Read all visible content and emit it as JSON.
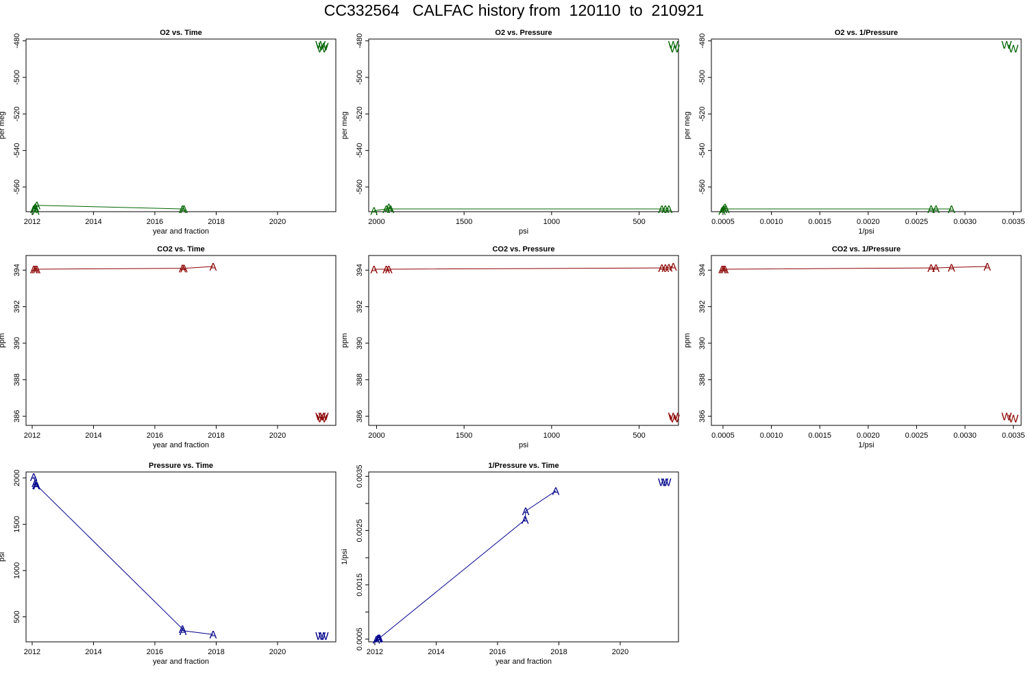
{
  "title": "CC332564   CALFAC history from  120110  to  210921",
  "colors": {
    "o2": "#006400",
    "co2": "#8B0000",
    "pressure": "#00008B"
  },
  "chart_data": [
    {
      "id": "o2-time",
      "type": "scatter",
      "title": "O2 vs. Time",
      "xlabel": "year and fraction",
      "ylabel": "per meg",
      "xlim": [
        2011.8,
        2021.9
      ],
      "ylim": [
        -573.5,
        -479
      ],
      "y_reversed": false,
      "x_reversed": false,
      "xticks": [
        2012,
        2014,
        2016,
        2018,
        2020
      ],
      "yticks": [
        -480,
        -500,
        -520,
        -540,
        -560
      ],
      "color_key": "o2",
      "series": [
        {
          "marker": "A",
          "line": true,
          "points": [
            [
              2012.05,
              -572
            ],
            [
              2012.1,
              -571
            ],
            [
              2012.12,
              -573
            ],
            [
              2012.15,
              -570
            ],
            [
              2016.9,
              -572
            ],
            [
              2016.95,
              -572
            ]
          ]
        },
        {
          "marker": "W",
          "line": false,
          "points": [
            [
              2021.4,
              -482
            ],
            [
              2021.45,
              -484
            ],
            [
              2021.5,
              -483
            ]
          ]
        }
      ]
    },
    {
      "id": "o2-pressure",
      "type": "scatter",
      "title": "O2 vs. Pressure",
      "xlabel": "psi",
      "ylabel": "per meg",
      "xlim": [
        2045,
        275
      ],
      "ylim": [
        -573.5,
        -479
      ],
      "x_reversed": true,
      "xticks": [
        2000,
        1500,
        1000,
        500
      ],
      "yticks": [
        -480,
        -500,
        -520,
        -540,
        -560
      ],
      "color_key": "o2",
      "series": [
        {
          "marker": "A",
          "line": true,
          "points": [
            [
              2015,
              -573
            ],
            [
              1945,
              -572
            ],
            [
              1930,
              -571
            ],
            [
              1920,
              -572
            ],
            [
              370,
              -572
            ],
            [
              350,
              -572
            ],
            [
              330,
              -572
            ]
          ]
        },
        {
          "marker": "W",
          "line": false,
          "points": [
            [
              305,
              -482
            ],
            [
              297,
              -484
            ]
          ]
        }
      ]
    },
    {
      "id": "o2-invpressure",
      "type": "scatter",
      "title": "O2 vs. 1/Pressure",
      "xlabel": "1/psi",
      "ylabel": "per meg",
      "xlim": [
        0.00038,
        0.00358
      ],
      "ylim": [
        -573.5,
        -479
      ],
      "x_reversed": false,
      "xticks": [
        "0.0005",
        "0.0010",
        "0.0015",
        "0.0020",
        "0.0025",
        "0.0030",
        "0.0035"
      ],
      "xtick_values": [
        0.0005,
        0.001,
        0.0015,
        0.002,
        0.0025,
        0.003,
        0.0035
      ],
      "yticks": [
        -480,
        -500,
        -520,
        -540,
        -560
      ],
      "color_key": "o2",
      "series": [
        {
          "marker": "A",
          "line": true,
          "points": [
            [
              0.00049,
              -573
            ],
            [
              0.000505,
              -572
            ],
            [
              0.00052,
              -571
            ],
            [
              0.00053,
              -572
            ],
            [
              0.00265,
              -572
            ],
            [
              0.0027,
              -572
            ],
            [
              0.00286,
              -572
            ]
          ]
        },
        {
          "marker": "W",
          "line": false,
          "points": [
            [
              0.00343,
              -482
            ],
            [
              0.0035,
              -484
            ]
          ]
        }
      ]
    },
    {
      "id": "co2-time",
      "type": "scatter",
      "title": "CO2 vs. Time",
      "xlabel": "year and fraction",
      "ylabel": "ppm",
      "xlim": [
        2011.8,
        2021.9
      ],
      "ylim": [
        385.5,
        394.8
      ],
      "x_reversed": false,
      "xticks": [
        2012,
        2014,
        2016,
        2018,
        2020
      ],
      "yticks": [
        386,
        388,
        390,
        392,
        394
      ],
      "color_key": "co2",
      "series": [
        {
          "marker": "A",
          "line": true,
          "points": [
            [
              2012.05,
              394.05
            ],
            [
              2012.1,
              394.05
            ],
            [
              2012.15,
              394.05
            ],
            [
              2016.9,
              394.1
            ],
            [
              2016.95,
              394.1
            ],
            [
              2017.9,
              394.2
            ]
          ]
        },
        {
          "marker": "W",
          "line": false,
          "points": [
            [
              2021.4,
              386.0
            ],
            [
              2021.45,
              385.9
            ],
            [
              2021.5,
              386.0
            ]
          ]
        }
      ]
    },
    {
      "id": "co2-pressure",
      "type": "scatter",
      "title": "CO2 vs. Pressure",
      "xlabel": "psi",
      "ylabel": "ppm",
      "xlim": [
        2045,
        275
      ],
      "ylim": [
        385.5,
        394.8
      ],
      "x_reversed": true,
      "xticks": [
        2000,
        1500,
        1000,
        500
      ],
      "yticks": [
        386,
        388,
        390,
        392,
        394
      ],
      "color_key": "co2",
      "series": [
        {
          "marker": "A",
          "line": true,
          "points": [
            [
              2015,
              394.05
            ],
            [
              1945,
              394.05
            ],
            [
              1930,
              394.05
            ],
            [
              370,
              394.12
            ],
            [
              350,
              394.12
            ],
            [
              330,
              394.15
            ],
            [
              305,
              394.2
            ]
          ]
        },
        {
          "marker": "W",
          "line": false,
          "points": [
            [
              305,
              386.0
            ],
            [
              297,
              385.9
            ]
          ]
        }
      ]
    },
    {
      "id": "co2-invpressure",
      "type": "scatter",
      "title": "CO2 vs. 1/Pressure",
      "xlabel": "1/psi",
      "ylabel": "ppm",
      "xlim": [
        0.00038,
        0.00358
      ],
      "ylim": [
        385.5,
        394.8
      ],
      "x_reversed": false,
      "xticks": [
        "0.0005",
        "0.0010",
        "0.0015",
        "0.0020",
        "0.0025",
        "0.0030",
        "0.0035"
      ],
      "xtick_values": [
        0.0005,
        0.001,
        0.0015,
        0.002,
        0.0025,
        0.003,
        0.0035
      ],
      "yticks": [
        386,
        388,
        390,
        392,
        394
      ],
      "color_key": "co2",
      "series": [
        {
          "marker": "A",
          "line": true,
          "points": [
            [
              0.00049,
              394.05
            ],
            [
              0.000505,
              394.05
            ],
            [
              0.00052,
              394.05
            ],
            [
              0.00265,
              394.12
            ],
            [
              0.0027,
              394.12
            ],
            [
              0.00286,
              394.15
            ],
            [
              0.00323,
              394.2
            ]
          ]
        },
        {
          "marker": "W",
          "line": false,
          "points": [
            [
              0.00343,
              386.0
            ],
            [
              0.0035,
              385.9
            ]
          ]
        }
      ]
    },
    {
      "id": "pressure-time",
      "type": "scatter",
      "title": "Pressure vs. Time",
      "xlabel": "year and fraction",
      "ylabel": "psi",
      "xlim": [
        2011.8,
        2021.9
      ],
      "ylim": [
        230,
        2065
      ],
      "x_reversed": false,
      "xticks": [
        2012,
        2014,
        2016,
        2018,
        2020
      ],
      "yticks": [
        500,
        1000,
        1500,
        2000
      ],
      "color_key": "pressure",
      "series": [
        {
          "marker": "A",
          "line": true,
          "points": [
            [
              2012.05,
              2015
            ],
            [
              2012.1,
              1945
            ],
            [
              2012.12,
              1925
            ],
            [
              2012.15,
              1920
            ],
            [
              2016.9,
              370
            ],
            [
              2016.92,
              350
            ],
            [
              2017.9,
              310
            ]
          ]
        },
        {
          "marker": "W",
          "line": false,
          "points": [
            [
              2021.4,
              295
            ],
            [
              2021.5,
              295
            ]
          ]
        }
      ]
    },
    {
      "id": "invpressure-time",
      "type": "scatter",
      "title": "1/Pressure vs. Time",
      "xlabel": "year and fraction",
      "ylabel": "1/psi",
      "xlim": [
        2011.8,
        2021.9
      ],
      "ylim": [
        0.00045,
        0.00358
      ],
      "x_reversed": false,
      "xticks": [
        2012,
        2014,
        2016,
        2018,
        2020
      ],
      "yticks": [
        "0.0005",
        "0.0015",
        "0.0025",
        "0.0035"
      ],
      "ytick_values": [
        0.0005,
        0.0015,
        0.0025,
        0.0035
      ],
      "yminor": [
        0.001,
        0.002,
        0.003
      ],
      "color_key": "pressure",
      "series": [
        {
          "marker": "A",
          "line": true,
          "points": [
            [
              2012.05,
              0.000495
            ],
            [
              2012.1,
              0.000515
            ],
            [
              2012.12,
              0.00052
            ],
            [
              2012.15,
              0.00052
            ],
            [
              2016.9,
              0.0027
            ],
            [
              2016.92,
              0.00286
            ],
            [
              2017.9,
              0.00323
            ]
          ]
        },
        {
          "marker": "W",
          "line": false,
          "points": [
            [
              2021.4,
              0.0034
            ],
            [
              2021.5,
              0.0034
            ]
          ]
        }
      ]
    }
  ]
}
